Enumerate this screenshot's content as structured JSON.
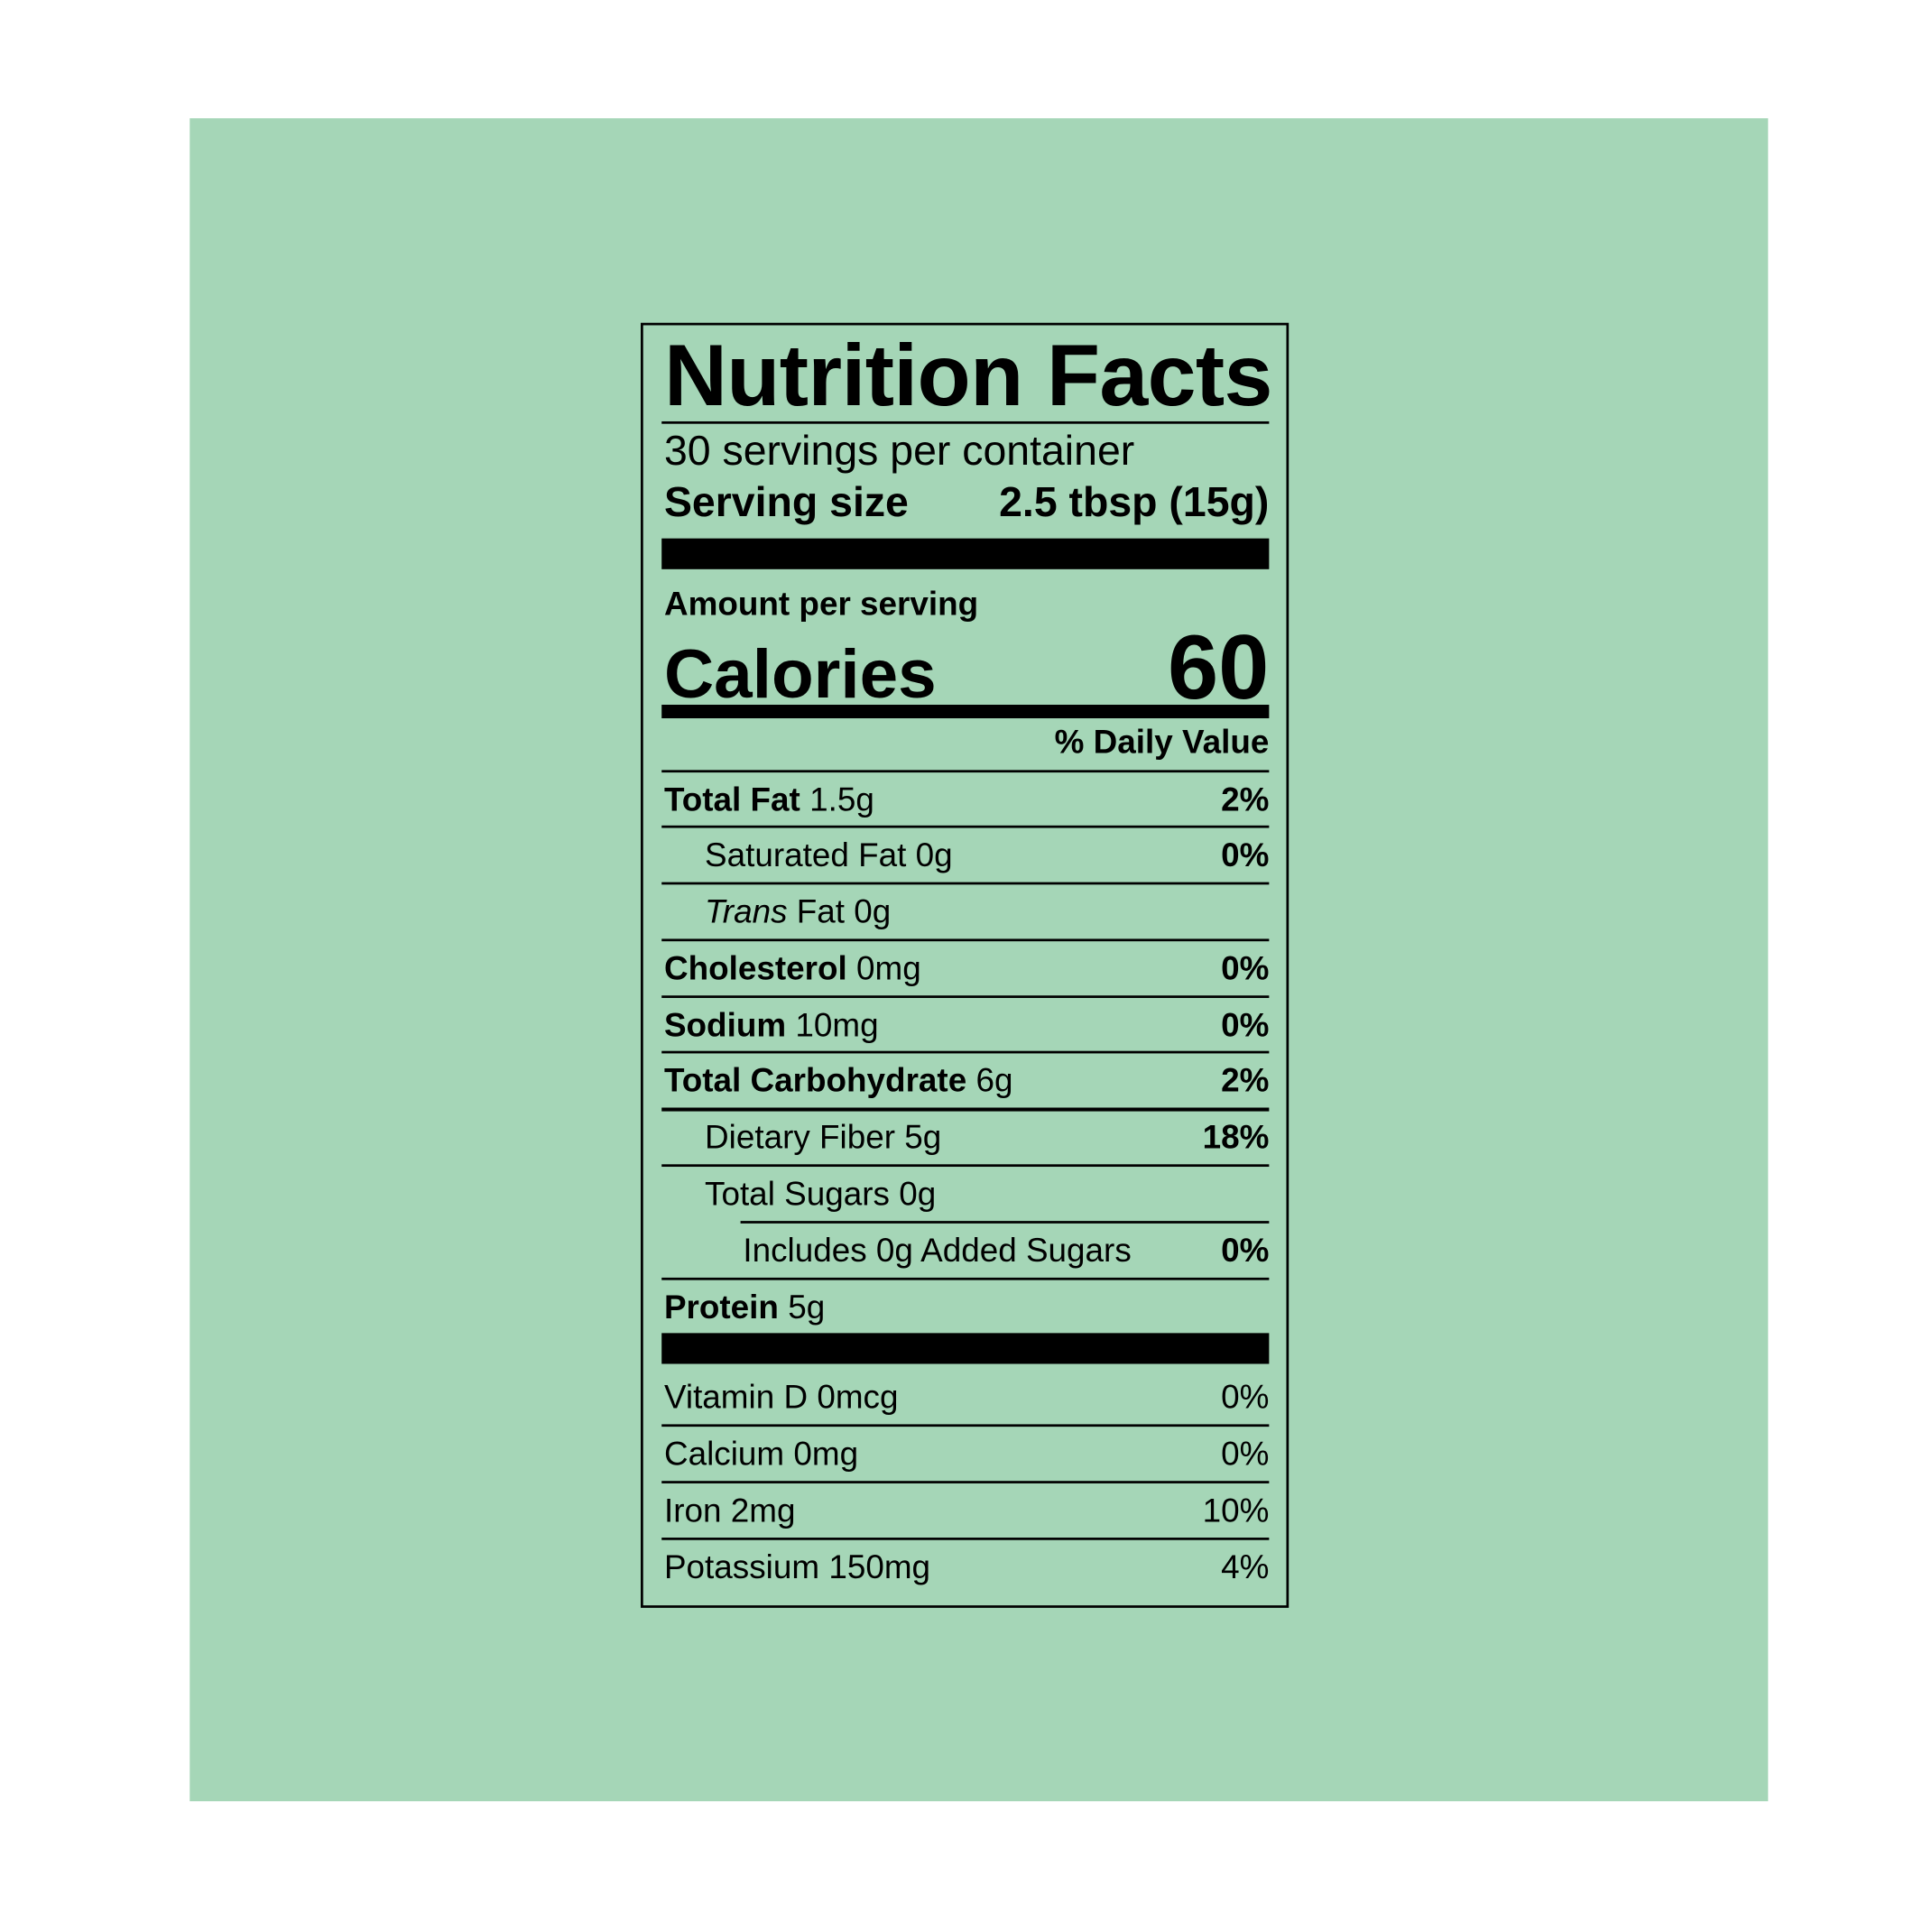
{
  "background_color": "#a5d6b7",
  "label": {
    "title": "Nutrition Facts",
    "servings_per_container": "30 servings per container",
    "serving_size_label": "Serving size",
    "serving_size_value": "2.5 tbsp (15g)",
    "amount_per_serving": "Amount per serving",
    "calories_label": "Calories",
    "calories_value": "60",
    "daily_value_header": "% Daily Value",
    "nutrients": [
      {
        "name": "Total Fat",
        "amount": "1.5g",
        "dv": "2%"
      },
      {
        "name": "Saturated Fat",
        "amount": "0g",
        "dv": "0%"
      },
      {
        "name_italic": "Trans",
        "name": "Fat",
        "amount": "0g",
        "dv": ""
      },
      {
        "name": "Cholesterol",
        "amount": "0mg",
        "dv": "0%"
      },
      {
        "name": "Sodium",
        "amount": "10mg",
        "dv": "0%"
      },
      {
        "name": "Total Carbohydrate",
        "amount": "6g",
        "dv": "2%"
      },
      {
        "name": "Dietary Fiber",
        "amount": "5g",
        "dv": "18%"
      },
      {
        "name": "Total Sugars",
        "amount": "0g",
        "dv": ""
      },
      {
        "name": "Includes 0g Added Sugars",
        "amount": "",
        "dv": "0%"
      },
      {
        "name": "Protein",
        "amount": "5g",
        "dv": ""
      }
    ],
    "vitamins": [
      {
        "name": "Vitamin D",
        "amount": "0mcg",
        "dv": "0%"
      },
      {
        "name": "Calcium",
        "amount": "0mg",
        "dv": "0%"
      },
      {
        "name": "Iron",
        "amount": "2mg",
        "dv": "10%"
      },
      {
        "name": "Potassium",
        "amount": "150mg",
        "dv": "4%"
      }
    ]
  }
}
